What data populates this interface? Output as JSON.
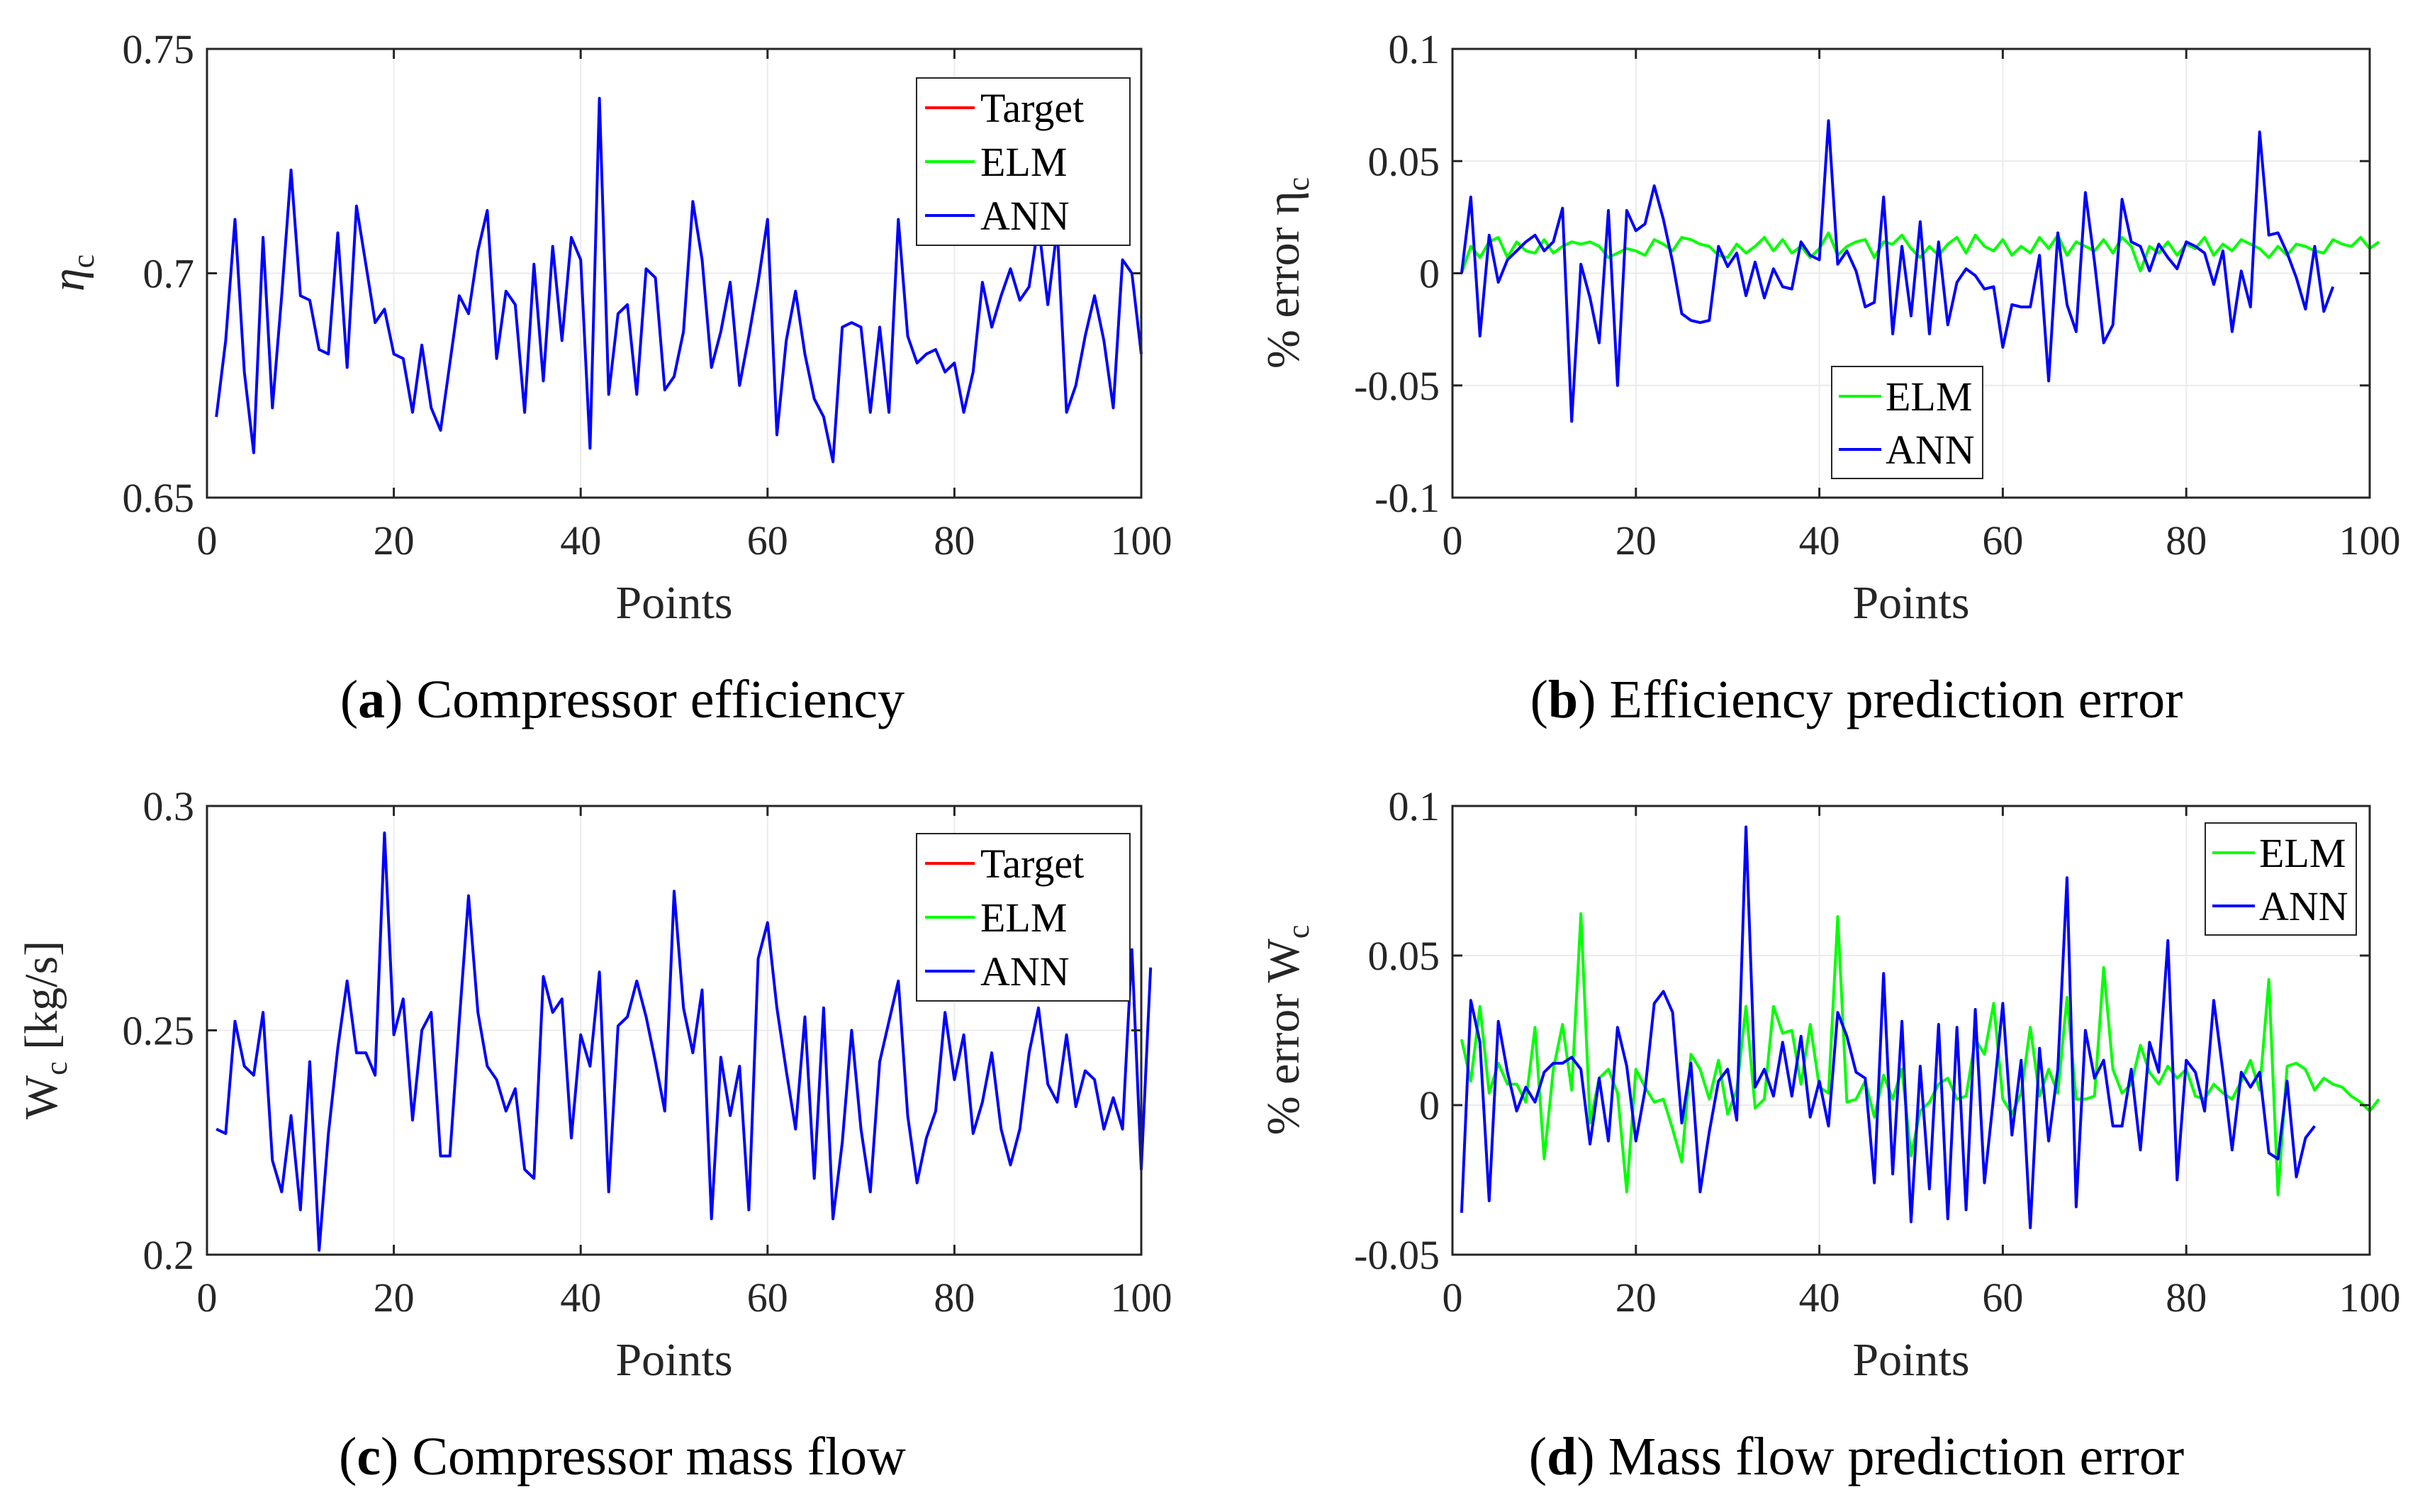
{
  "figure": {
    "panels": [
      {
        "id": "a",
        "caption_letter": "a",
        "caption_text": "Compressor efficiency"
      },
      {
        "id": "b",
        "caption_letter": "b",
        "caption_text": "Efficiency prediction error"
      },
      {
        "id": "c",
        "caption_letter": "c",
        "caption_text": "Compressor mass flow"
      },
      {
        "id": "d",
        "caption_letter": "d",
        "caption_text": "Mass flow prediction error"
      }
    ]
  },
  "colors": {
    "target": "#ff0000",
    "elm": "#00ff00",
    "ann": "#0000ff",
    "axis": "#262626",
    "grid": "#ebebeb"
  },
  "chart_data": [
    {
      "id": "a",
      "type": "line",
      "title": "",
      "xlabel": "Points",
      "ylabel": "η",
      "ylabel_sub": "c",
      "xlim": [
        0,
        100
      ],
      "ylim": [
        0.65,
        0.75
      ],
      "xticks": [
        0,
        20,
        40,
        60,
        80,
        100
      ],
      "yticks": [
        0.65,
        0.7,
        0.75
      ],
      "ytick_labels": [
        "0.65",
        "0.7",
        "0.75"
      ],
      "legend": "top-right",
      "x_start": 1,
      "series": [
        {
          "name": "Target",
          "color": "#ff0000",
          "values": []
        },
        {
          "name": "ELM",
          "color": "#00ff00",
          "values": []
        },
        {
          "name": "ANN",
          "color": "#0000ff",
          "values": [
            0.668,
            0.685,
            0.712,
            0.678,
            0.66,
            0.708,
            0.67,
            0.695,
            0.723,
            0.695,
            0.694,
            0.683,
            0.682,
            0.709,
            0.679,
            0.715,
            0.702,
            0.689,
            0.692,
            0.682,
            0.681,
            0.669,
            0.684,
            0.67,
            0.665,
            0.68,
            0.695,
            0.691,
            0.705,
            0.714,
            0.681,
            0.696,
            0.693,
            0.669,
            0.702,
            0.676,
            0.706,
            0.685,
            0.708,
            0.703,
            0.661,
            0.739,
            0.673,
            0.691,
            0.693,
            0.673,
            0.701,
            0.699,
            0.674,
            0.677,
            0.687,
            0.716,
            0.703,
            0.679,
            0.687,
            0.698,
            0.675,
            0.686,
            0.698,
            0.712,
            0.664,
            0.685,
            0.696,
            0.682,
            0.672,
            0.668,
            0.658,
            0.688,
            0.689,
            0.688,
            0.669,
            0.688,
            0.669,
            0.712,
            0.686,
            0.68,
            0.682,
            0.683,
            0.678,
            0.68,
            0.669,
            0.678,
            0.698,
            0.688,
            0.695,
            0.701,
            0.694,
            0.697,
            0.711,
            0.693,
            0.71,
            0.669,
            0.675,
            0.686,
            0.695,
            0.685,
            0.67,
            0.703,
            0.7,
            0.682
          ]
        }
      ]
    },
    {
      "id": "b",
      "type": "line",
      "title": "",
      "xlabel": "Points",
      "ylabel": "% error η",
      "ylabel_sub": "c",
      "xlim": [
        0,
        100
      ],
      "ylim": [
        -0.1,
        0.1
      ],
      "xticks": [
        0,
        20,
        40,
        60,
        80,
        100
      ],
      "yticks": [
        -0.1,
        -0.05,
        0,
        0.05,
        0.1
      ],
      "ytick_labels": [
        "-0.1",
        "-0.05",
        "0",
        "0.05",
        "0.1"
      ],
      "legend": "lower-center",
      "x_start": 1,
      "series": [
        {
          "name": "ELM",
          "color": "#00ff00",
          "values": [
            0.0,
            0.012,
            0.007,
            0.014,
            0.016,
            0.007,
            0.014,
            0.01,
            0.009,
            0.015,
            0.009,
            0.012,
            0.014,
            0.013,
            0.014,
            0.012,
            0.007,
            0.009,
            0.011,
            0.01,
            0.008,
            0.015,
            0.013,
            0.01,
            0.016,
            0.015,
            0.013,
            0.012,
            0.008,
            0.007,
            0.013,
            0.009,
            0.012,
            0.016,
            0.01,
            0.015,
            0.009,
            0.012,
            0.007,
            0.011,
            0.018,
            0.008,
            0.012,
            0.014,
            0.015,
            0.007,
            0.014,
            0.013,
            0.017,
            0.011,
            0.007,
            0.012,
            0.008,
            0.013,
            0.016,
            0.009,
            0.017,
            0.012,
            0.01,
            0.015,
            0.008,
            0.012,
            0.009,
            0.016,
            0.011,
            0.017,
            0.008,
            0.014,
            0.012,
            0.01,
            0.015,
            0.009,
            0.016,
            0.012,
            0.001,
            0.012,
            0.009,
            0.014,
            0.008,
            0.013,
            0.011,
            0.016,
            0.008,
            0.013,
            0.01,
            0.015,
            0.013,
            0.011,
            0.007,
            0.012,
            0.008,
            0.013,
            0.012,
            0.01,
            0.009,
            0.015,
            0.013,
            0.012,
            0.016,
            0.011,
            0.014
          ]
        },
        {
          "name": "ANN",
          "color": "#0000ff",
          "values": [
            0.0,
            0.034,
            -0.028,
            0.017,
            -0.004,
            0.006,
            0.01,
            0.014,
            0.017,
            0.01,
            0.014,
            0.029,
            -0.066,
            0.004,
            -0.011,
            -0.031,
            0.028,
            -0.05,
            0.028,
            0.019,
            0.022,
            0.039,
            0.024,
            0.005,
            -0.018,
            -0.021,
            -0.022,
            -0.021,
            0.012,
            0.003,
            0.009,
            -0.01,
            0.005,
            -0.011,
            0.002,
            -0.006,
            -0.007,
            0.014,
            0.008,
            0.006,
            0.068,
            0.004,
            0.01,
            0.001,
            -0.015,
            -0.013,
            0.034,
            -0.027,
            0.012,
            -0.019,
            0.023,
            -0.027,
            0.014,
            -0.023,
            -0.004,
            0.002,
            -0.001,
            -0.007,
            -0.006,
            -0.033,
            -0.014,
            -0.015,
            -0.015,
            0.008,
            -0.048,
            0.018,
            -0.014,
            -0.026,
            0.036,
            0.005,
            -0.031,
            -0.023,
            0.033,
            0.014,
            0.012,
            0.001,
            0.013,
            0.007,
            0.002,
            0.014,
            0.012,
            0.009,
            -0.005,
            0.01,
            -0.026,
            0.001,
            -0.015,
            0.063,
            0.017,
            0.018,
            0.009,
            -0.002,
            -0.016,
            0.012,
            -0.017,
            -0.006
          ]
        }
      ]
    },
    {
      "id": "c",
      "type": "line",
      "title": "",
      "xlabel": "Points",
      "ylabel": "W",
      "ylabel_sub": "c",
      "ylabel_suffix": "[kg/s]",
      "xlim": [
        0,
        100
      ],
      "ylim": [
        0.2,
        0.3
      ],
      "xticks": [
        0,
        20,
        40,
        60,
        80,
        100
      ],
      "yticks": [
        0.2,
        0.25,
        0.3
      ],
      "ytick_labels": [
        "0.2",
        "0.25",
        "0.3"
      ],
      "legend": "top-right",
      "x_start": 1,
      "series": [
        {
          "name": "Target",
          "color": "#ff0000",
          "values": []
        },
        {
          "name": "ELM",
          "color": "#00ff00",
          "values": []
        },
        {
          "name": "ANN",
          "color": "#0000ff",
          "values": [
            0.228,
            0.227,
            0.252,
            0.242,
            0.24,
            0.254,
            0.221,
            0.214,
            0.231,
            0.21,
            0.243,
            0.201,
            0.227,
            0.246,
            0.261,
            0.245,
            0.245,
            0.24,
            0.294,
            0.249,
            0.257,
            0.23,
            0.25,
            0.254,
            0.222,
            0.222,
            0.252,
            0.28,
            0.254,
            0.242,
            0.239,
            0.232,
            0.237,
            0.219,
            0.217,
            0.262,
            0.254,
            0.257,
            0.226,
            0.249,
            0.242,
            0.263,
            0.214,
            0.251,
            0.253,
            0.261,
            0.253,
            0.243,
            0.232,
            0.281,
            0.255,
            0.245,
            0.259,
            0.208,
            0.244,
            0.231,
            0.242,
            0.21,
            0.266,
            0.274,
            0.255,
            0.241,
            0.228,
            0.253,
            0.217,
            0.255,
            0.208,
            0.225,
            0.25,
            0.228,
            0.214,
            0.243,
            0.252,
            0.261,
            0.231,
            0.216,
            0.226,
            0.232,
            0.254,
            0.239,
            0.249,
            0.227,
            0.234,
            0.245,
            0.228,
            0.22,
            0.228,
            0.245,
            0.255,
            0.238,
            0.234,
            0.249,
            0.233,
            0.241,
            0.239,
            0.228,
            0.235,
            0.228,
            0.268,
            0.219,
            0.264
          ]
        }
      ]
    },
    {
      "id": "d",
      "type": "line",
      "title": "",
      "xlabel": "Points",
      "ylabel": "% error W",
      "ylabel_sub": "c",
      "xlim": [
        0,
        100
      ],
      "ylim": [
        -0.05,
        0.1
      ],
      "xticks": [
        0,
        20,
        40,
        60,
        80,
        100
      ],
      "yticks": [
        -0.05,
        0,
        0.05,
        0.1
      ],
      "ytick_labels": [
        "-0.05",
        "0",
        "0.05",
        "0.1"
      ],
      "legend": "top-right",
      "x_start": 1,
      "series": [
        {
          "name": "ELM",
          "color": "#00ff00",
          "values": [
            0.022,
            0.008,
            0.033,
            0.004,
            0.014,
            0.007,
            0.007,
            0.001,
            0.026,
            -0.018,
            0.012,
            0.027,
            0.005,
            0.064,
            -0.006,
            0.009,
            0.012,
            0.004,
            -0.029,
            0.012,
            0.006,
            0.001,
            0.002,
            -0.008,
            -0.019,
            0.017,
            0.012,
            0.002,
            0.015,
            -0.003,
            0.005,
            0.033,
            -0.001,
            0.002,
            0.033,
            0.024,
            0.025,
            0.007,
            0.027,
            0.006,
            0.004,
            0.063,
            0.001,
            0.002,
            0.008,
            -0.004,
            0.01,
            0.002,
            0.012,
            -0.017,
            -0.002,
            0.001,
            0.007,
            0.009,
            0.002,
            0.003,
            0.022,
            0.017,
            0.034,
            0.002,
            -0.003,
            0.004,
            0.026,
            0.003,
            0.012,
            0.004,
            0.036,
            0.002,
            0.002,
            0.003,
            0.046,
            0.012,
            0.004,
            0.007,
            0.02,
            0.011,
            0.007,
            0.013,
            0.009,
            0.012,
            0.003,
            0.002,
            0.007,
            0.004,
            0.002,
            0.008,
            0.015,
            0.005,
            0.042,
            -0.03,
            0.013,
            0.014,
            0.012,
            0.005,
            0.009,
            0.007,
            0.006,
            0.003,
            0.001,
            -0.002,
            0.002
          ]
        },
        {
          "name": "ANN",
          "color": "#0000ff",
          "values": [
            -0.036,
            0.035,
            0.021,
            -0.032,
            0.028,
            0.011,
            -0.002,
            0.006,
            0.001,
            0.011,
            0.014,
            0.014,
            0.016,
            0.012,
            -0.013,
            0.009,
            -0.012,
            0.026,
            0.013,
            -0.012,
            0.005,
            0.034,
            0.038,
            0.031,
            -0.006,
            0.014,
            -0.029,
            -0.009,
            0.008,
            0.012,
            -0.005,
            0.093,
            0.006,
            0.012,
            0.003,
            0.021,
            0.003,
            0.023,
            -0.004,
            0.008,
            -0.007,
            0.031,
            0.023,
            0.011,
            0.009,
            -0.026,
            0.044,
            -0.023,
            0.028,
            -0.039,
            0.013,
            -0.028,
            0.027,
            -0.038,
            0.026,
            -0.035,
            0.032,
            -0.026,
            0.003,
            0.034,
            -0.01,
            0.015,
            -0.041,
            0.019,
            -0.012,
            0.012,
            0.076,
            -0.034,
            0.025,
            0.009,
            0.015,
            -0.007,
            -0.007,
            0.012,
            -0.015,
            0.021,
            0.011,
            0.055,
            -0.025,
            0.015,
            0.011,
            -0.002,
            0.035,
            0.011,
            -0.015,
            0.011,
            0.006,
            0.011,
            -0.016,
            -0.018,
            0.008,
            -0.024,
            -0.011,
            -0.007
          ]
        }
      ]
    }
  ]
}
